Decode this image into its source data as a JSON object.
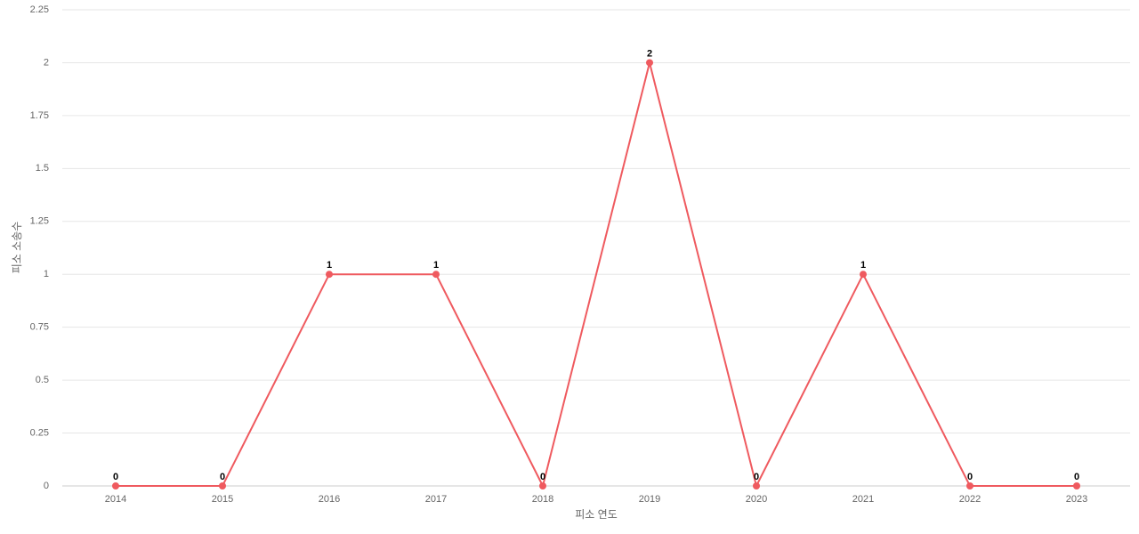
{
  "chart_data": {
    "type": "line",
    "categories": [
      "2014",
      "2015",
      "2016",
      "2017",
      "2018",
      "2019",
      "2020",
      "2021",
      "2022",
      "2023"
    ],
    "series": [
      {
        "name": "피소 소송수",
        "color": "#ef5a5f",
        "values": [
          0,
          0,
          1,
          1,
          0,
          2,
          0,
          1,
          0,
          0
        ]
      }
    ],
    "x_label": "피소 연도",
    "y_label": "피소 소송수",
    "ylim": [
      0,
      2.25
    ],
    "yticks": [
      0,
      0.25,
      0.5,
      0.75,
      1,
      1.25,
      1.5,
      1.75,
      2,
      2.25
    ],
    "grid": true
  }
}
